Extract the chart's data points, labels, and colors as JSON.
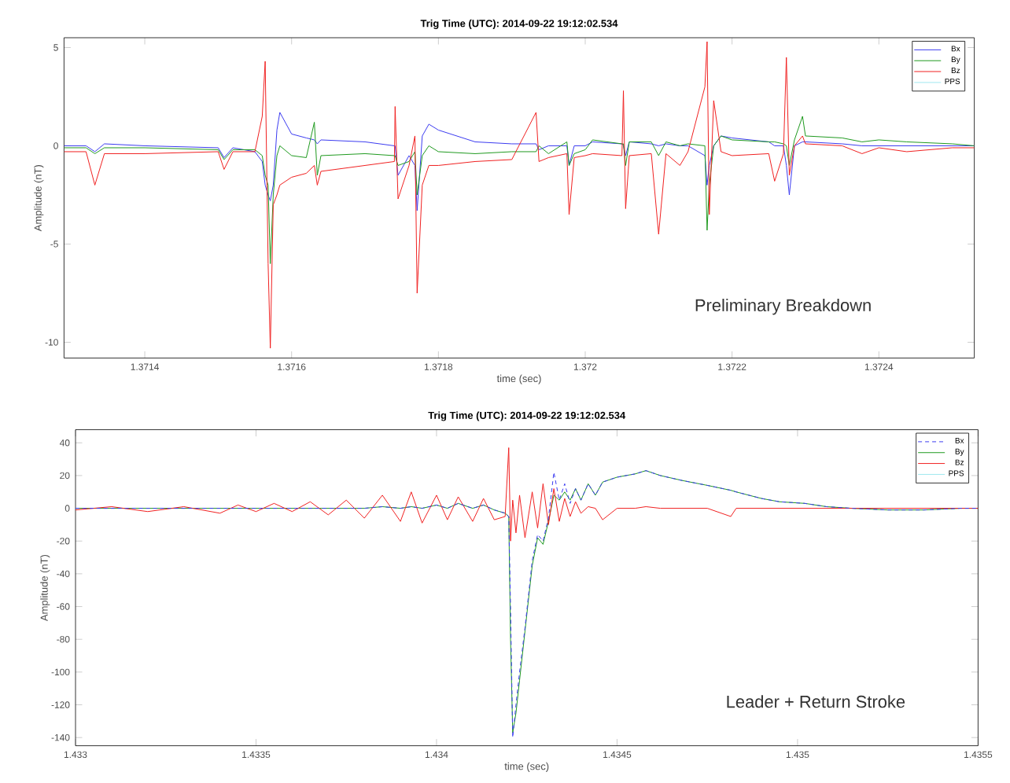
{
  "chart_data": [
    {
      "type": "line",
      "title": "Trig Time (UTC): 2014-09-22 19:12:02.534",
      "xlabel": "time (sec)",
      "ylabel": "Amplitude (nT)",
      "x": [
        1.37129,
        1.37132,
        1.371332,
        1.371345,
        1.3714,
        1.3715,
        1.371508,
        1.37152,
        1.37155,
        1.37156,
        1.371564,
        1.371568,
        1.371571,
        1.371575,
        1.37158,
        1.371584,
        1.3716,
        1.37162,
        1.371631,
        1.371635,
        1.37164,
        1.3717,
        1.37174,
        1.371741,
        1.371745,
        1.37176,
        1.371768,
        1.371771,
        1.371778,
        1.371787,
        1.3718,
        1.37185,
        1.3719,
        1.371933,
        1.371937,
        1.37195,
        1.371975,
        1.371978,
        1.371985,
        1.372,
        1.37201,
        1.37205,
        1.372052,
        1.372055,
        1.37206,
        1.37209,
        1.3721,
        1.37211,
        1.372129,
        1.37214,
        1.372163,
        1.372166,
        1.372169,
        1.372175,
        1.372185,
        1.3722,
        1.37225,
        1.372258,
        1.37227,
        1.372274,
        1.372278,
        1.372285,
        1.372296,
        1.3723,
        1.37235,
        1.372377,
        1.3724,
        1.372438,
        1.3725,
        1.37253
      ],
      "series": [
        {
          "name": "Bx",
          "color": "#3b3bf0",
          "values": [
            0,
            0,
            -0.3,
            0.1,
            0,
            -0.1,
            -0.6,
            -0.1,
            -0.3,
            -0.8,
            -2.0,
            -2.5,
            -2.8,
            -2.0,
            0.8,
            1.7,
            0.6,
            0.4,
            0.3,
            0.1,
            0.3,
            0.2,
            0,
            0,
            -1.5,
            -0.5,
            -1.0,
            -3.3,
            0.5,
            1.1,
            0.8,
            0.2,
            0.1,
            0.1,
            -0.2,
            0,
            0,
            -1.0,
            0,
            0,
            0.2,
            0.1,
            0,
            -0.5,
            0.2,
            0.1,
            0,
            0.1,
            0,
            0,
            -0.5,
            -2.0,
            -1.0,
            0,
            0.5,
            0.4,
            0.2,
            0,
            0,
            -1.0,
            -2.5,
            0,
            0.2,
            0.2,
            0.1,
            0,
            0,
            0,
            0,
            0
          ]
        },
        {
          "name": "By",
          "color": "#1f9a1f",
          "values": [
            -0.1,
            -0.1,
            -0.4,
            -0.1,
            -0.1,
            -0.2,
            -0.7,
            -0.2,
            -0.2,
            -0.5,
            -1.5,
            -2.0,
            -6.0,
            -2.5,
            -0.5,
            0,
            -0.5,
            -0.6,
            1.2,
            -1.5,
            -0.5,
            -0.4,
            -0.5,
            -0.5,
            -1.0,
            -0.8,
            -0.3,
            -2.5,
            -0.5,
            0,
            -0.3,
            -0.4,
            -0.3,
            -0.3,
            0,
            -0.4,
            0.2,
            -1.0,
            -0.4,
            -0.2,
            0.3,
            0.1,
            0.1,
            -1.0,
            0.2,
            0.2,
            -0.5,
            0.2,
            0,
            0.1,
            0,
            -4.3,
            -2.0,
            0,
            0.5,
            0.3,
            0.2,
            0.2,
            0.1,
            0,
            -1.0,
            0.3,
            1.5,
            0.5,
            0.4,
            0.2,
            0.3,
            0.2,
            0.1,
            0
          ]
        },
        {
          "name": "Bz",
          "color": "#f02020",
          "values": [
            -0.3,
            -0.3,
            -2.0,
            -0.4,
            -0.4,
            -0.3,
            -1.2,
            -0.3,
            -0.3,
            1.5,
            4.3,
            -6.0,
            -10.3,
            -3.0,
            -2.5,
            -2.0,
            -1.6,
            -1.4,
            -1.0,
            -2.0,
            -1.3,
            -1.0,
            -0.8,
            2.0,
            -2.7,
            -1.0,
            0.5,
            -7.5,
            -2.0,
            -1.0,
            -1.0,
            -0.8,
            -0.7,
            1.7,
            -0.8,
            -0.6,
            -0.4,
            -3.5,
            -0.6,
            -0.5,
            -0.4,
            -0.5,
            2.8,
            -3.2,
            -0.5,
            -0.4,
            -4.5,
            -0.4,
            -1.0,
            -0.3,
            3.0,
            5.3,
            -3.5,
            2.3,
            -0.3,
            -0.5,
            -0.4,
            -1.8,
            -0.4,
            4.5,
            -1.5,
            0,
            0.5,
            0.1,
            0,
            -0.4,
            -0.1,
            -0.3,
            -0.1,
            -0.1
          ]
        },
        {
          "name": "PPS",
          "color": "#a0e8f0",
          "values": [
            null,
            null,
            null,
            null,
            null,
            null,
            null,
            null,
            null,
            null,
            null,
            null,
            null,
            null,
            null,
            null,
            null,
            null,
            null,
            null,
            null,
            null,
            null,
            null,
            null,
            null,
            null,
            null,
            null,
            null,
            null,
            null,
            null,
            null,
            null,
            null,
            null,
            null,
            null,
            null,
            null,
            null,
            null,
            null,
            null,
            null,
            null,
            null,
            null,
            null,
            null,
            null,
            null,
            null,
            null,
            null,
            null,
            null,
            null,
            null,
            null,
            null,
            null,
            null,
            null,
            null,
            null,
            null,
            null,
            null
          ]
        }
      ],
      "xlim": [
        1.37129,
        1.37253
      ],
      "ylim": [
        -10.8,
        5.5
      ],
      "xticks": [
        1.3714,
        1.3716,
        1.3718,
        1.372,
        1.3722,
        1.3724
      ],
      "yticks": [
        -10,
        -5,
        0,
        5
      ],
      "legend": "top right",
      "annotations": [
        "Preliminary Breakdown"
      ]
    },
    {
      "type": "line",
      "title": "Trig Time (UTC): 2014-09-22 19:12:02.534",
      "xlabel": "time (sec)",
      "ylabel": "Amplitude (nT)",
      "x": [
        1.433,
        1.4331,
        1.4332,
        1.4333,
        1.4334,
        1.43345,
        1.4335,
        1.43355,
        1.4336,
        1.43365,
        1.4337,
        1.43375,
        1.4338,
        1.43385,
        1.4339,
        1.43393,
        1.43396,
        1.434,
        1.43403,
        1.43406,
        1.4341,
        1.43413,
        1.43416,
        1.43419,
        1.4342,
        1.434205,
        1.434211,
        1.43422,
        1.43423,
        1.434245,
        1.434265,
        1.43428,
        1.434295,
        1.43431,
        1.434325,
        1.43434,
        1.434355,
        1.43437,
        1.434385,
        1.4344,
        1.43442,
        1.43444,
        1.43446,
        1.4345,
        1.43455,
        1.43458,
        1.43462,
        1.43468,
        1.43475,
        1.434815,
        1.43483,
        1.4349,
        1.43495,
        1.43502,
        1.43508,
        1.43515,
        1.43525,
        1.43535,
        1.43545,
        1.4355
      ],
      "series": [
        {
          "name": "Bx",
          "color": "#3b3bf0",
          "line_style": "dashed",
          "values": [
            0,
            0,
            0,
            0,
            0,
            0,
            0,
            0,
            0,
            0,
            0,
            0,
            0,
            1,
            0,
            1,
            0,
            2,
            0,
            3,
            0,
            2,
            -1,
            -3,
            -5,
            -60,
            -140,
            -120,
            -100,
            -73,
            -32,
            -16,
            -20,
            -6,
            22,
            5,
            15,
            3,
            12,
            5,
            15,
            8,
            16,
            19,
            21,
            23,
            20,
            17,
            14,
            11,
            10,
            6,
            4,
            3,
            1,
            0,
            -1,
            -1,
            0,
            0
          ]
        },
        {
          "name": "By",
          "color": "#1f9a1f",
          "values": [
            0,
            0,
            0,
            0,
            0,
            0,
            0,
            0,
            0,
            0,
            0,
            0,
            0,
            1,
            0,
            1,
            0,
            2,
            0,
            3,
            0,
            2,
            -1,
            -3,
            -5,
            -80,
            -137,
            -125,
            -105,
            -75,
            -35,
            -18,
            -22,
            -8,
            8,
            5,
            10,
            5,
            12,
            5,
            15,
            8,
            16,
            19,
            21,
            23,
            20,
            17,
            14,
            11,
            10,
            6,
            4,
            3,
            1,
            0,
            -1,
            -1,
            0,
            0
          ]
        },
        {
          "name": "Bz",
          "color": "#f02020",
          "values": [
            -1,
            1,
            -2,
            1,
            -3,
            2,
            -2,
            3,
            -2,
            4,
            -4,
            5,
            -6,
            8,
            -8,
            10,
            -9,
            8,
            -7,
            7,
            -8,
            6,
            -7,
            -5,
            37,
            -20,
            5,
            -15,
            8,
            -18,
            10,
            -12,
            15,
            -10,
            12,
            -8,
            6,
            -5,
            4,
            -3,
            1,
            0,
            -7,
            0,
            0,
            1,
            0,
            0,
            0,
            -5,
            0,
            0,
            0,
            0,
            0,
            0,
            0,
            0,
            0,
            0
          ]
        },
        {
          "name": "PPS",
          "color": "#a0e8f0",
          "values": [
            null,
            null,
            null,
            null,
            null,
            null,
            null,
            null,
            null,
            null,
            null,
            null,
            null,
            null,
            null,
            null,
            null,
            null,
            null,
            null,
            null,
            null,
            null,
            null,
            null,
            null,
            null,
            null,
            null,
            null,
            null,
            null,
            null,
            null,
            null,
            null,
            null,
            null,
            null,
            null,
            null,
            null,
            null,
            null,
            null,
            null,
            null,
            null,
            null,
            null,
            null,
            null,
            null,
            null,
            null,
            null,
            null,
            null,
            null,
            null
          ]
        }
      ],
      "xlim": [
        1.433,
        1.4355
      ],
      "ylim": [
        -145,
        48
      ],
      "xticks": [
        1.433,
        1.4335,
        1.434,
        1.4345,
        1.435,
        1.4355
      ],
      "yticks": [
        -140,
        -120,
        -100,
        -80,
        -60,
        -40,
        -20,
        0,
        20,
        40
      ],
      "legend": "top right",
      "annotations": [
        "Leader + Return Stroke"
      ]
    }
  ]
}
